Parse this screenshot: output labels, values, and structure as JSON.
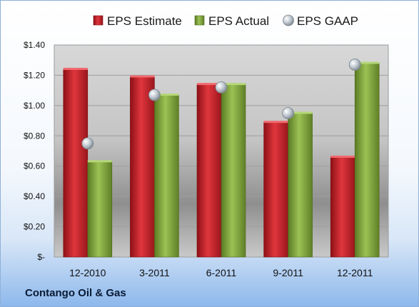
{
  "company": "Contango Oil & Gas",
  "colors": {
    "estimate": "#c8242c",
    "actual": "#7fa33a",
    "gaap": "#b9c3cc"
  },
  "chart_data": {
    "type": "bar",
    "categories": [
      "12-2010",
      "3-2011",
      "6-2011",
      "9-2011",
      "12-2011"
    ],
    "series": [
      {
        "name": "EPS Estimate",
        "values": [
          1.24,
          1.19,
          1.14,
          0.89,
          0.66
        ]
      },
      {
        "name": "EPS Actual",
        "values": [
          0.63,
          1.07,
          1.14,
          0.95,
          1.28
        ]
      },
      {
        "name": "EPS GAAP",
        "type": "scatter",
        "values": [
          0.75,
          1.07,
          1.12,
          0.95,
          1.27
        ]
      }
    ],
    "y_ticks": [
      "$-",
      "$0.20",
      "$0.40",
      "$0.60",
      "$0.80",
      "$1.00",
      "$1.20",
      "$1.40"
    ],
    "ylim": [
      0,
      1.4
    ],
    "grid": true,
    "legend": "top"
  }
}
